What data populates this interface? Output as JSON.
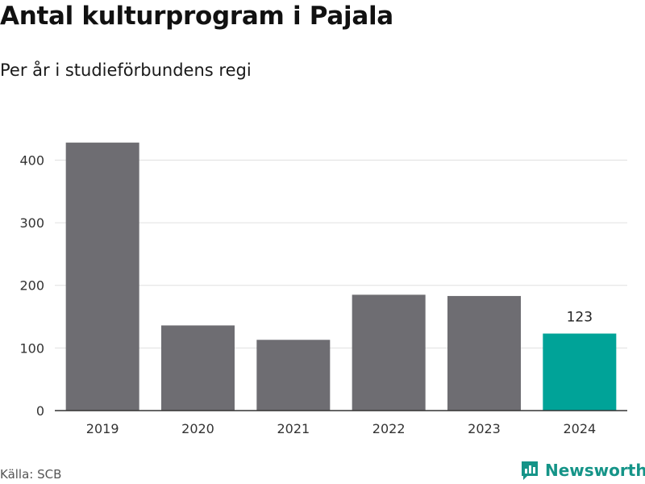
{
  "title": "Antal kulturprogram i Pajala",
  "subtitle": "Per år i studieförbundens regi",
  "source": "Källa: SCB",
  "brand": "Newsworthy",
  "colors": {
    "bar": "#6e6d72",
    "highlight": "#00a398",
    "grid": "#e0e0e0",
    "axis": "#333333",
    "brand": "#159488"
  },
  "chart_data": {
    "type": "bar",
    "categories": [
      "2019",
      "2020",
      "2021",
      "2022",
      "2023",
      "2024"
    ],
    "values": [
      428,
      136,
      113,
      185,
      183,
      123
    ],
    "highlight_index": 5,
    "data_labels": [
      {
        "index": 5,
        "text": "123"
      }
    ],
    "yticks": [
      0,
      100,
      200,
      300,
      400
    ],
    "ylim": [
      0,
      445
    ],
    "grid": true
  }
}
